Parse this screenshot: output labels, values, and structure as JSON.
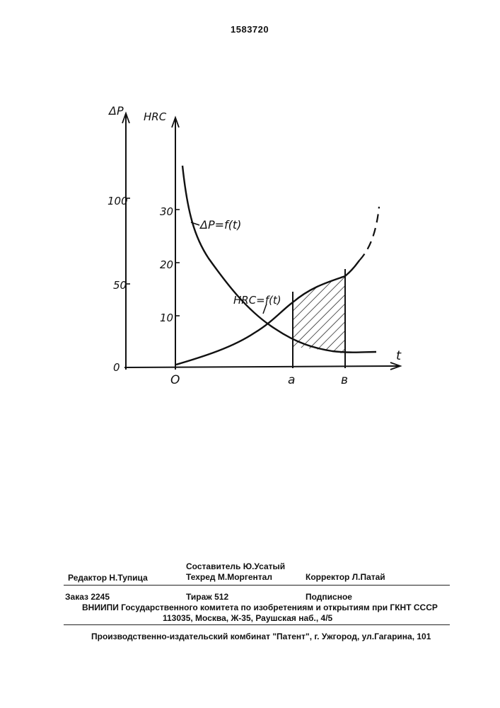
{
  "page_number": "1583720",
  "figure": {
    "left_axis_label": "ΔP",
    "right_axis_label": "HRC",
    "x_axis_label": "t",
    "left_ticks": [
      "100",
      "50",
      "0"
    ],
    "right_ticks": [
      "30",
      "20",
      "10"
    ],
    "x_points": [
      "O",
      "a",
      "в"
    ],
    "curve_labels": {
      "dp": "ΔP=f(t)",
      "hrc": "HRC=f(t)"
    }
  },
  "imprint": {
    "compiler": "Составитель  Ю.Усатый",
    "editor": "Редактор  Н.Тупица",
    "techred": "Техред М.Моргентал",
    "corrector": "Корректор  Л.Патай",
    "order": "Заказ 2245",
    "circulation": "Тираж 512",
    "subscription": "Подписное",
    "institute": "ВНИИПИ Государственного комитета по изобретениям и открытиям при ГКНТ СССР",
    "address": "113035, Москва, Ж-35, Раушская наб., 4/5",
    "publisher": "Производственно-издательский комбинат \"Патент\", г. Ужгород, ул.Гагарина, 101"
  }
}
